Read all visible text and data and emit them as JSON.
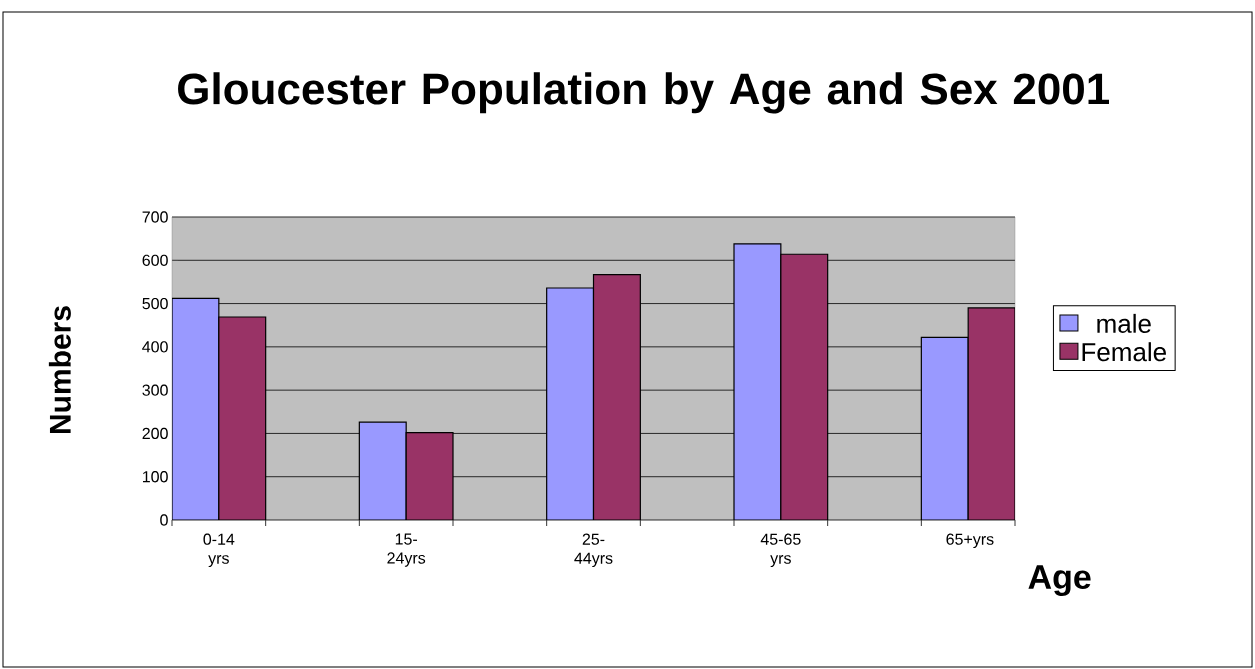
{
  "chart_data": {
    "type": "bar",
    "title": "Gloucester Population by Age and Sex 2001",
    "xlabel": "Age",
    "ylabel": "Numbers",
    "categories": [
      "0-14 yrs",
      "15-24yrs",
      "25-44yrs",
      "45-65 yrs",
      "65+yrs"
    ],
    "series": [
      {
        "name": "male",
        "color": "#9999ff",
        "values": [
          512,
          226,
          536,
          638,
          422
        ]
      },
      {
        "name": "Female",
        "color": "#993366",
        "values": [
          469,
          202,
          567,
          614,
          490
        ]
      }
    ],
    "ylim": [
      0,
      700
    ],
    "yticks": [
      0,
      100,
      200,
      300,
      400,
      500,
      600,
      700
    ],
    "grid": "y",
    "legend": "right"
  }
}
